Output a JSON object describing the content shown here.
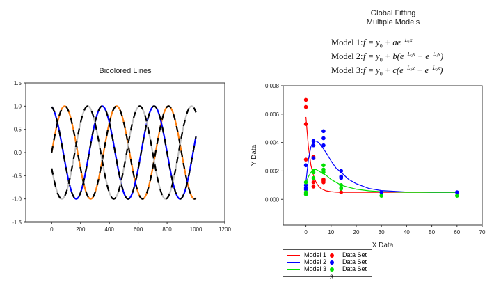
{
  "chart_data": [
    {
      "type": "line",
      "title": "Bicolored Lines",
      "xlabel": "",
      "ylabel": "",
      "xlim": [
        -180,
        1200
      ],
      "ylim": [
        -1.5,
        1.5
      ],
      "xticks": [
        "0",
        "200",
        "400",
        "600",
        "800",
        "1000",
        "1200"
      ],
      "yticks": [
        "1.5",
        "1.0",
        "0.5",
        "0.0",
        "-0.5",
        "-1.0",
        "-1.5"
      ],
      "grid": false,
      "x_range": [
        0,
        1000
      ],
      "series": [
        {
          "function": "sin",
          "amplitude": 1,
          "period": 360,
          "phase_deg": 0,
          "colors": [
            "#ff7f0e",
            "#000000"
          ]
        },
        {
          "function": "sin",
          "amplitude": 1,
          "period": 360,
          "phase_deg": 100,
          "colors": [
            "#0000ff",
            "#000000"
          ]
        },
        {
          "function": "sin",
          "amplitude": 1,
          "period": 360,
          "phase_deg": -160,
          "colors": [
            "#c0c0c0",
            "#000000"
          ]
        }
      ]
    },
    {
      "type": "scatter",
      "title": "Global Fitting\nMultiple Models",
      "title_lines": [
        "Global Fitting",
        "Multiple Models"
      ],
      "xlabel": "X Data",
      "ylabel": "Y Data",
      "xlim": [
        -9,
        70
      ],
      "ylim": [
        -0.0018,
        0.008
      ],
      "xticks": [
        "0",
        "10",
        "20",
        "30",
        "40",
        "50",
        "60",
        "70"
      ],
      "yticks": [
        "0.008",
        "0.006",
        "0.004",
        "0.002",
        "0.000"
      ],
      "grid": false,
      "legend_placement": "bottom-left",
      "equations": [
        {
          "label": "Model 1:",
          "parts": [
            {
              "t": "f"
            },
            {
              "t": " = y"
            },
            {
              "sub": "0"
            },
            {
              "t": " + ae"
            },
            {
              "sup": "−L₁x"
            }
          ]
        },
        {
          "label": "Model 2:",
          "parts": [
            {
              "t": "f"
            },
            {
              "t": " = y"
            },
            {
              "sub": "0"
            },
            {
              "t": " + b(e"
            },
            {
              "sup": "−L₂x"
            },
            {
              "t": " − e"
            },
            {
              "sup": "−L₁x"
            },
            {
              "t": ")"
            }
          ]
        },
        {
          "label": "Model 3:",
          "parts": [
            {
              "t": "f"
            },
            {
              "t": " = y"
            },
            {
              "sub": "0"
            },
            {
              "t": " + c(e"
            },
            {
              "sup": "−L₃x"
            },
            {
              "t": " − e"
            },
            {
              "sup": "−L₂x"
            },
            {
              "t": ")"
            }
          ]
        }
      ],
      "models": [
        {
          "name": "Model 1",
          "color": "#ff0000",
          "x": [
            0,
            1,
            2,
            3,
            4,
            5,
            6,
            8,
            10,
            12,
            14,
            17,
            20,
            25,
            30,
            40,
            50,
            60
          ],
          "y": [
            0.0058,
            0.0037,
            0.0024,
            0.0017,
            0.0012,
            0.00094,
            0.00076,
            0.0006,
            0.00054,
            0.00051,
            0.0005,
            0.0005,
            0.0005,
            0.0005,
            0.0005,
            0.0005,
            0.0005,
            0.0005
          ]
        },
        {
          "name": "Model 2",
          "color": "#0000ff",
          "x": [
            0,
            1,
            2,
            3,
            4,
            5,
            6,
            8,
            10,
            12,
            14,
            17,
            20,
            25,
            30,
            40,
            50,
            60
          ],
          "y": [
            0.0012,
            0.0028,
            0.0037,
            0.0041,
            0.0041,
            0.004,
            0.0038,
            0.0033,
            0.0027,
            0.0022,
            0.0019,
            0.0014,
            0.0011,
            0.00077,
            0.00062,
            0.00052,
            0.0005,
            0.0005
          ]
        },
        {
          "name": "Model 3",
          "color": "#00e000",
          "x": [
            0,
            1,
            2,
            3,
            4,
            5,
            6,
            8,
            10,
            12,
            14,
            17,
            20,
            25,
            30,
            40,
            50,
            60
          ],
          "y": [
            0.0011,
            0.0016,
            0.0019,
            0.0021,
            0.0021,
            0.002,
            0.0019,
            0.0017,
            0.0014,
            0.0012,
            0.001,
            0.00085,
            0.00072,
            0.0006,
            0.00054,
            0.0005,
            0.0005,
            0.0005
          ]
        }
      ],
      "datasets": [
        {
          "name": "Data Set 1",
          "color": "#ff0000",
          "points": [
            [
              0,
              0.007
            ],
            [
              0,
              0.0065
            ],
            [
              0,
              0.0053
            ],
            [
              0,
              0.0028
            ],
            [
              3,
              0.003
            ],
            [
              3,
              0.0029
            ],
            [
              3,
              0.0012
            ],
            [
              3,
              0.0009
            ],
            [
              7,
              0.0014
            ],
            [
              7,
              0.0013
            ],
            [
              7,
              0.0012
            ],
            [
              14,
              0.0005
            ]
          ]
        },
        {
          "name": "Data Set 2",
          "color": "#0000ff",
          "points": [
            [
              0,
              0.0024
            ],
            [
              0,
              0.001
            ],
            [
              0,
              0.0008
            ],
            [
              0,
              0.0007
            ],
            [
              3,
              0.0041
            ],
            [
              3,
              0.0038
            ],
            [
              3,
              0.0029
            ],
            [
              7,
              0.0048
            ],
            [
              7,
              0.0043
            ],
            [
              7,
              0.0038
            ],
            [
              14,
              0.002
            ],
            [
              14,
              0.0016
            ],
            [
              14,
              0.0015
            ],
            [
              30,
              0.0005
            ],
            [
              60,
              0.0005
            ]
          ]
        },
        {
          "name": "Data Set 3",
          "color": "#00e000",
          "points": [
            [
              0,
              0.0012
            ],
            [
              0,
              0.0005
            ],
            [
              0,
              0.0004
            ],
            [
              0,
              0.00035
            ],
            [
              3,
              0.002
            ],
            [
              3,
              0.0019
            ],
            [
              3,
              0.0015
            ],
            [
              7,
              0.0024
            ],
            [
              7,
              0.0021
            ],
            [
              7,
              0.0019
            ],
            [
              14,
              0.001
            ],
            [
              14,
              0.0008
            ],
            [
              14,
              0.00075
            ],
            [
              30,
              0.00025
            ],
            [
              60,
              0.00025
            ]
          ]
        }
      ]
    }
  ]
}
